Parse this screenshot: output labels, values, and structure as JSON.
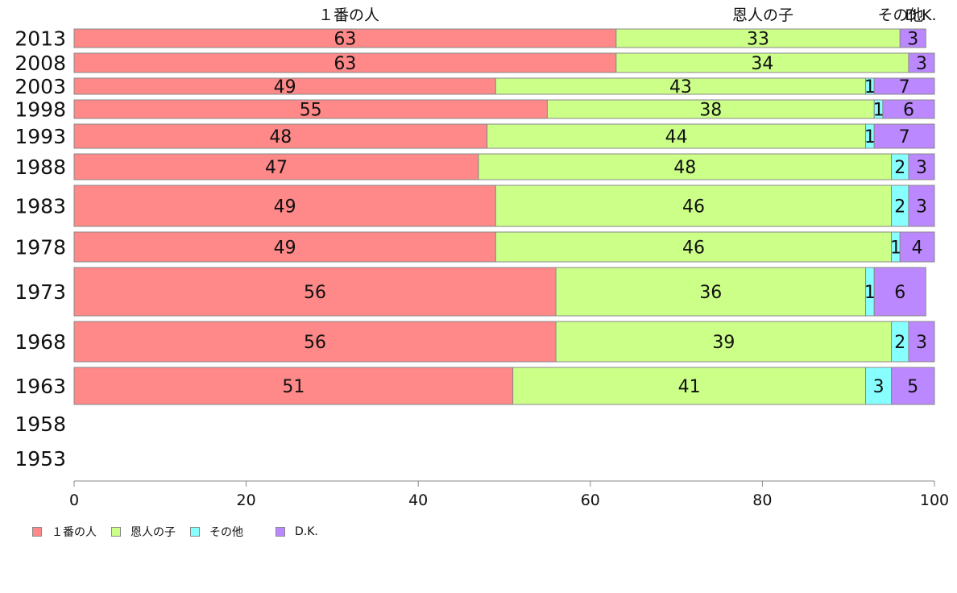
{
  "chart_data": {
    "type": "bar",
    "orientation": "horizontal",
    "stacked": true,
    "categories": [
      "2013",
      "2008",
      "2003",
      "1998",
      "1993",
      "1988",
      "1983",
      "1978",
      "1973",
      "1968",
      "1963",
      "1958",
      "1953"
    ],
    "series": [
      {
        "name": "１番の人",
        "color": "#ff8888",
        "values": [
          63,
          63,
          49,
          55,
          48,
          47,
          49,
          49,
          56,
          56,
          51,
          null,
          null
        ]
      },
      {
        "name": "恩人の子",
        "color": "#ccff88",
        "values": [
          33,
          34,
          43,
          38,
          44,
          48,
          46,
          46,
          36,
          39,
          41,
          null,
          null
        ]
      },
      {
        "name": "その他",
        "color": "#88ffff",
        "values": [
          0,
          0,
          1,
          1,
          1,
          2,
          2,
          1,
          1,
          2,
          3,
          null,
          null
        ]
      },
      {
        "name": "D.K.",
        "color": "#bb88ff",
        "values": [
          3,
          3,
          7,
          6,
          7,
          3,
          3,
          4,
          6,
          3,
          5,
          null,
          null
        ]
      }
    ],
    "top_labels": [
      "１番の人",
      "恩人の子",
      "その他",
      "D.K."
    ],
    "xlim": [
      0,
      100
    ],
    "xticks": [
      "0",
      "20",
      "40",
      "60",
      "80",
      "100"
    ],
    "legend_position": "bottom-left",
    "grid": false
  }
}
